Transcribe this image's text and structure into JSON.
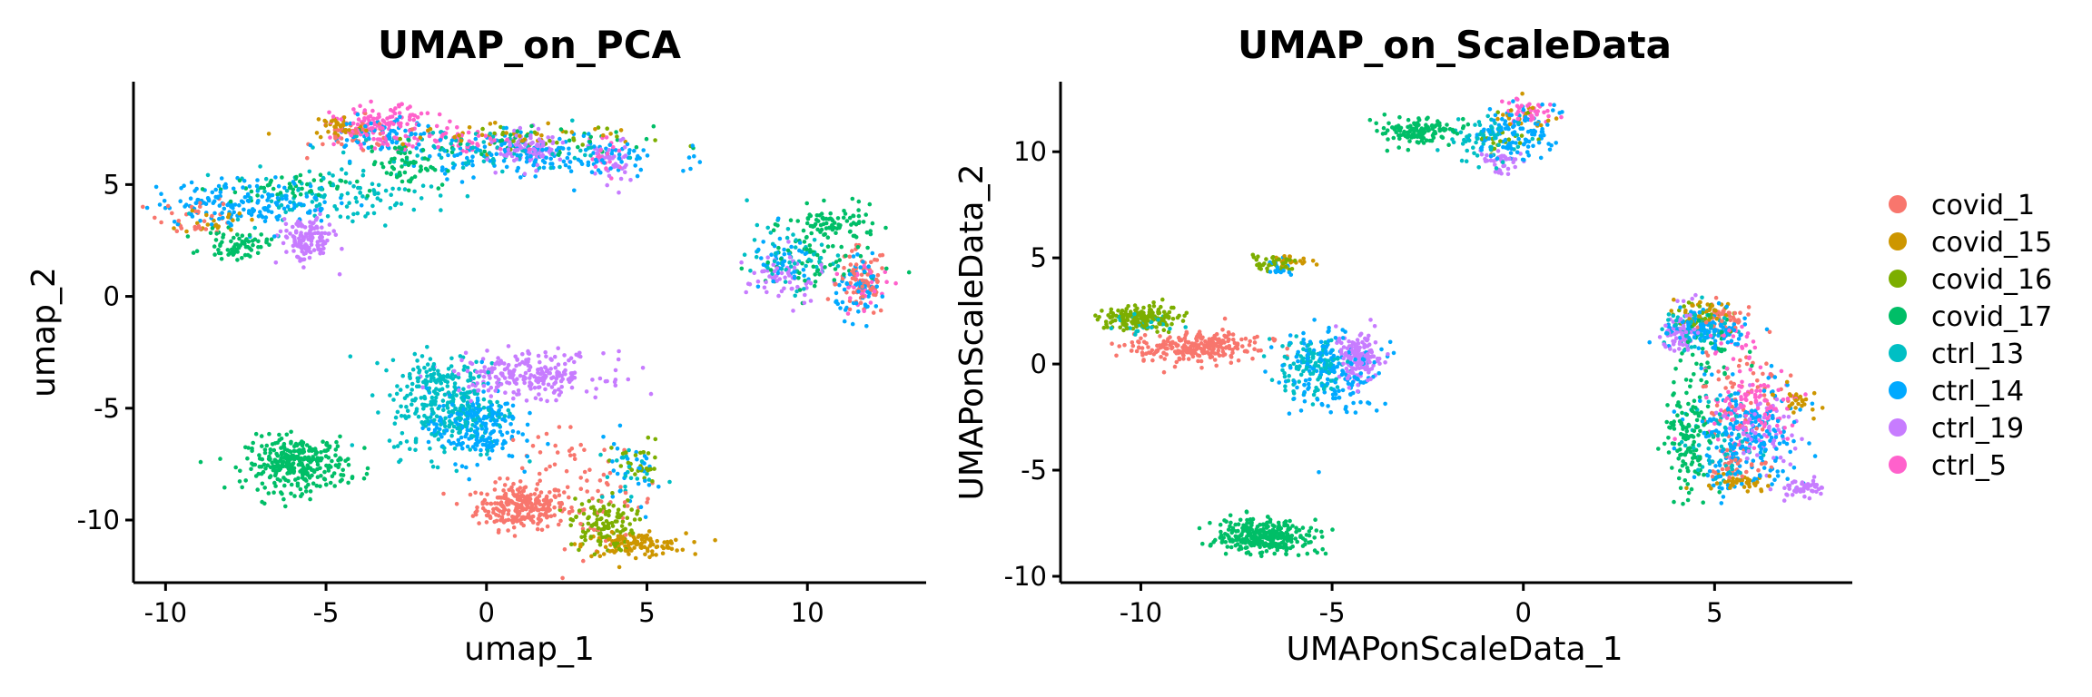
{
  "chart_data": [
    {
      "type": "scatter",
      "title": "UMAP_on_PCA",
      "xlabel": "umap_1",
      "ylabel": "umap_2",
      "xlim": [
        -11,
        13.7
      ],
      "ylim": [
        -12.8,
        9.6
      ],
      "xticks": [
        -10,
        -5,
        0,
        5,
        10
      ],
      "yticks": [
        -10,
        -5,
        0,
        5
      ],
      "series": [
        {
          "name": "covid_1",
          "clusters": [
            {
              "cx": 1.1,
              "cy": -9.4,
              "sx": 0.7,
              "sy": 0.5,
              "n": 260
            },
            {
              "cx": 3.4,
              "cy": -9.2,
              "sx": 1.0,
              "sy": 1.0,
              "n": 50
            },
            {
              "cx": 2.0,
              "cy": -7.6,
              "sx": 1.0,
              "sy": 0.9,
              "n": 30
            },
            {
              "cx": 11.7,
              "cy": 0.6,
              "sx": 0.4,
              "sy": 0.8,
              "n": 80
            },
            {
              "cx": -4.0,
              "cy": 7.2,
              "sx": 0.7,
              "sy": 0.4,
              "n": 40
            },
            {
              "cx": -9.0,
              "cy": 3.6,
              "sx": 0.6,
              "sy": 0.4,
              "n": 30
            }
          ]
        },
        {
          "name": "covid_15",
          "clusters": [
            {
              "cx": 4.6,
              "cy": -11.1,
              "sx": 0.8,
              "sy": 0.25,
              "n": 120
            },
            {
              "cx": -4.6,
              "cy": 7.6,
              "sx": 0.4,
              "sy": 0.3,
              "n": 40
            },
            {
              "cx": 0.5,
              "cy": 7.2,
              "sx": 2.5,
              "sy": 0.3,
              "n": 40
            },
            {
              "cx": -8.5,
              "cy": 3.4,
              "sx": 0.5,
              "sy": 0.3,
              "n": 20
            }
          ]
        },
        {
          "name": "covid_16",
          "clusters": [
            {
              "cx": 3.6,
              "cy": -10.2,
              "sx": 0.5,
              "sy": 0.6,
              "n": 120
            },
            {
              "cx": 4.7,
              "cy": -7.6,
              "sx": 0.4,
              "sy": 0.6,
              "n": 30
            },
            {
              "cx": 1.8,
              "cy": 7.0,
              "sx": 2.0,
              "sy": 0.3,
              "n": 30
            }
          ]
        },
        {
          "name": "covid_17",
          "clusters": [
            {
              "cx": -5.9,
              "cy": -7.5,
              "sx": 0.8,
              "sy": 0.6,
              "n": 320
            },
            {
              "cx": 10.8,
              "cy": 3.2,
              "sx": 0.7,
              "sy": 0.4,
              "n": 90
            },
            {
              "cx": 10.2,
              "cy": 1.4,
              "sx": 1.0,
              "sy": 0.8,
              "n": 60
            },
            {
              "cx": -7.8,
              "cy": 2.3,
              "sx": 0.5,
              "sy": 0.3,
              "n": 70
            },
            {
              "cx": -2.5,
              "cy": 5.9,
              "sx": 0.6,
              "sy": 0.5,
              "n": 60
            },
            {
              "cx": -6.5,
              "cy": 4.8,
              "sx": 1.0,
              "sy": 0.3,
              "n": 50
            },
            {
              "cx": 1.2,
              "cy": 6.8,
              "sx": 2.0,
              "sy": 0.4,
              "n": 40
            }
          ]
        },
        {
          "name": "ctrl_13",
          "clusters": [
            {
              "cx": -1.2,
              "cy": -5.0,
              "sx": 0.9,
              "sy": 1.1,
              "n": 260
            },
            {
              "cx": -1.5,
              "cy": -3.5,
              "sx": 0.7,
              "sy": 0.5,
              "n": 60
            },
            {
              "cx": -4.8,
              "cy": 4.5,
              "sx": 1.6,
              "sy": 0.6,
              "n": 110
            },
            {
              "cx": -0.5,
              "cy": 6.5,
              "sx": 2.0,
              "sy": 0.5,
              "n": 80
            },
            {
              "cx": 9.5,
              "cy": 1.8,
              "sx": 0.7,
              "sy": 0.7,
              "n": 50
            },
            {
              "cx": 4.3,
              "cy": -8.0,
              "sx": 0.5,
              "sy": 0.7,
              "n": 20
            }
          ]
        },
        {
          "name": "ctrl_14",
          "clusters": [
            {
              "cx": -0.4,
              "cy": -5.8,
              "sx": 0.7,
              "sy": 0.8,
              "n": 220
            },
            {
              "cx": -7.5,
              "cy": 4.2,
              "sx": 1.4,
              "sy": 0.5,
              "n": 170
            },
            {
              "cx": 1.5,
              "cy": 6.3,
              "sx": 2.0,
              "sy": 0.5,
              "n": 170
            },
            {
              "cx": -3.2,
              "cy": 7.2,
              "sx": 0.8,
              "sy": 0.5,
              "n": 60
            },
            {
              "cx": 11.7,
              "cy": 0.3,
              "sx": 0.4,
              "sy": 0.6,
              "n": 60
            },
            {
              "cx": 9.3,
              "cy": 1.5,
              "sx": 0.5,
              "sy": 0.6,
              "n": 40
            },
            {
              "cx": 4.4,
              "cy": -8.1,
              "sx": 0.6,
              "sy": 0.9,
              "n": 30
            }
          ]
        },
        {
          "name": "ctrl_19",
          "clusters": [
            {
              "cx": 1.3,
              "cy": -3.5,
              "sx": 1.2,
              "sy": 0.5,
              "n": 240
            },
            {
              "cx": -5.6,
              "cy": 2.5,
              "sx": 0.4,
              "sy": 0.5,
              "n": 140
            },
            {
              "cx": 1.4,
              "cy": 6.6,
              "sx": 0.5,
              "sy": 0.4,
              "n": 110
            },
            {
              "cx": 9.3,
              "cy": 0.8,
              "sx": 0.6,
              "sy": 0.6,
              "n": 60
            },
            {
              "cx": 3.8,
              "cy": 5.9,
              "sx": 0.3,
              "sy": 0.6,
              "n": 40
            }
          ]
        },
        {
          "name": "ctrl_5",
          "clusters": [
            {
              "cx": -3.2,
              "cy": 7.6,
              "sx": 0.8,
              "sy": 0.45,
              "n": 150
            },
            {
              "cx": -0.5,
              "cy": 7.0,
              "sx": 0.8,
              "sy": 0.3,
              "n": 40
            },
            {
              "cx": 11.8,
              "cy": 0.4,
              "sx": 0.4,
              "sy": 0.5,
              "n": 30
            },
            {
              "cx": 3.7,
              "cy": 6.4,
              "sx": 0.3,
              "sy": 0.5,
              "n": 20
            }
          ]
        }
      ]
    },
    {
      "type": "scatter",
      "title": "UMAP_on_ScaleData",
      "xlabel": "UMAPonScaleData_1",
      "ylabel": "UMAPonScaleData_2",
      "xlim": [
        -12.1,
        8.6
      ],
      "ylim": [
        -10.3,
        13.3
      ],
      "xticks": [
        -10,
        -5,
        0,
        5
      ],
      "yticks": [
        -10,
        -5,
        0,
        5,
        10
      ],
      "series": [
        {
          "name": "covid_1",
          "clusters": [
            {
              "cx": -8.5,
              "cy": 0.8,
              "sx": 0.8,
              "sy": 0.35,
              "n": 250
            },
            {
              "cx": 5.3,
              "cy": 2.2,
              "sx": 0.3,
              "sy": 0.4,
              "n": 40
            },
            {
              "cx": 5.6,
              "cy": -1.8,
              "sx": 0.6,
              "sy": 1.0,
              "n": 60
            },
            {
              "cx": 5.3,
              "cy": -4.7,
              "sx": 0.5,
              "sy": 0.4,
              "n": 40
            }
          ]
        },
        {
          "name": "covid_15",
          "clusters": [
            {
              "cx": -6.0,
              "cy": 4.8,
              "sx": 0.4,
              "sy": 0.2,
              "n": 20
            },
            {
              "cx": 4.6,
              "cy": 2.5,
              "sx": 0.4,
              "sy": 0.3,
              "n": 30
            },
            {
              "cx": 5.5,
              "cy": -5.5,
              "sx": 0.4,
              "sy": 0.2,
              "n": 40
            },
            {
              "cx": 7.2,
              "cy": -1.8,
              "sx": 0.3,
              "sy": 0.3,
              "n": 30
            },
            {
              "cx": 0.2,
              "cy": 11.6,
              "sx": 0.4,
              "sy": 0.3,
              "n": 20
            }
          ]
        },
        {
          "name": "covid_16",
          "clusters": [
            {
              "cx": -10.0,
              "cy": 2.2,
              "sx": 0.5,
              "sy": 0.3,
              "n": 170
            },
            {
              "cx": -6.6,
              "cy": 4.8,
              "sx": 0.3,
              "sy": 0.2,
              "n": 40
            },
            {
              "cx": 4.6,
              "cy": 2.2,
              "sx": 0.4,
              "sy": 0.3,
              "n": 30
            },
            {
              "cx": -0.5,
              "cy": 10.5,
              "sx": 0.5,
              "sy": 0.5,
              "n": 20
            }
          ]
        },
        {
          "name": "covid_17",
          "clusters": [
            {
              "cx": -6.8,
              "cy": -8.1,
              "sx": 0.6,
              "sy": 0.4,
              "n": 320
            },
            {
              "cx": -2.7,
              "cy": 10.9,
              "sx": 0.45,
              "sy": 0.3,
              "n": 130
            },
            {
              "cx": 4.3,
              "cy": -3.5,
              "sx": 0.3,
              "sy": 1.4,
              "n": 130
            },
            {
              "cx": 5.0,
              "cy": 0.5,
              "sx": 0.4,
              "sy": 0.8,
              "n": 40
            }
          ]
        },
        {
          "name": "ctrl_13",
          "clusters": [
            {
              "cx": -5.5,
              "cy": -0.2,
              "sx": 0.5,
              "sy": 0.7,
              "n": 120
            },
            {
              "cx": -1.0,
              "cy": 10.6,
              "sx": 0.5,
              "sy": 0.6,
              "n": 60
            },
            {
              "cx": 4.5,
              "cy": 1.8,
              "sx": 0.4,
              "sy": 0.5,
              "n": 60
            },
            {
              "cx": 5.2,
              "cy": -3.8,
              "sx": 0.5,
              "sy": 1.2,
              "n": 70
            },
            {
              "cx": -10.0,
              "cy": 1.9,
              "sx": 0.4,
              "sy": 0.2,
              "n": 30
            }
          ]
        },
        {
          "name": "ctrl_14",
          "clusters": [
            {
              "cx": -5.0,
              "cy": -0.3,
              "sx": 0.6,
              "sy": 1.0,
              "n": 180
            },
            {
              "cx": -0.2,
              "cy": 10.9,
              "sx": 0.5,
              "sy": 0.6,
              "n": 120
            },
            {
              "cx": 4.8,
              "cy": 1.6,
              "sx": 0.5,
              "sy": 0.5,
              "n": 120
            },
            {
              "cx": 5.8,
              "cy": -3.5,
              "sx": 0.7,
              "sy": 1.2,
              "n": 220
            },
            {
              "cx": -6.3,
              "cy": 4.5,
              "sx": 0.2,
              "sy": 0.2,
              "n": 15
            }
          ]
        },
        {
          "name": "ctrl_19",
          "clusters": [
            {
              "cx": -4.3,
              "cy": 0.3,
              "sx": 0.3,
              "sy": 0.6,
              "n": 160
            },
            {
              "cx": 4.1,
              "cy": 1.5,
              "sx": 0.2,
              "sy": 0.6,
              "n": 70
            },
            {
              "cx": 7.3,
              "cy": -5.9,
              "sx": 0.3,
              "sy": 0.2,
              "n": 50
            },
            {
              "cx": 6.3,
              "cy": -3.0,
              "sx": 0.5,
              "sy": 0.8,
              "n": 60
            },
            {
              "cx": -0.6,
              "cy": 9.6,
              "sx": 0.3,
              "sy": 0.3,
              "n": 40
            }
          ]
        },
        {
          "name": "ctrl_5",
          "clusters": [
            {
              "cx": 6.0,
              "cy": -2.0,
              "sx": 0.6,
              "sy": 0.9,
              "n": 120
            },
            {
              "cx": 0.0,
              "cy": 11.8,
              "sx": 0.3,
              "sy": 0.3,
              "n": 40
            },
            {
              "cx": 5.5,
              "cy": 1.0,
              "sx": 0.3,
              "sy": 0.5,
              "n": 20
            }
          ]
        }
      ]
    }
  ],
  "legend": {
    "items": [
      {
        "label": "covid_1",
        "color": "#F8766D"
      },
      {
        "label": "covid_15",
        "color": "#CD9600"
      },
      {
        "label": "covid_16",
        "color": "#7CAE00"
      },
      {
        "label": "covid_17",
        "color": "#00BE67"
      },
      {
        "label": "ctrl_13",
        "color": "#00BFC4"
      },
      {
        "label": "ctrl_14",
        "color": "#00A9FF"
      },
      {
        "label": "ctrl_19",
        "color": "#C77CFF"
      },
      {
        "label": "ctrl_5",
        "color": "#FF61CC"
      }
    ]
  }
}
